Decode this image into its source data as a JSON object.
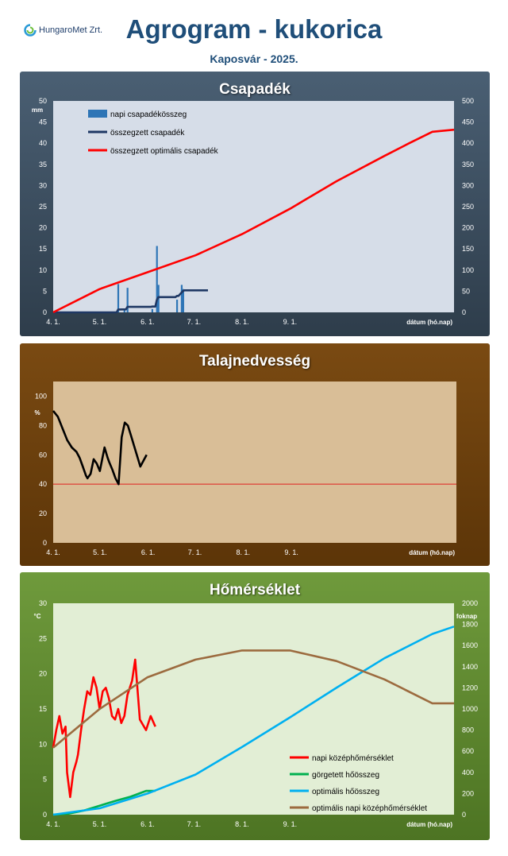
{
  "header": {
    "logo_text": "HungaroMet Zrt.",
    "title": "Agrogram - kukorica",
    "subtitle": "Kaposvár  - 2025."
  },
  "colors": {
    "title": "#1f4e79",
    "panel_precip": "#3b4d5f",
    "panel_soil": "#6b3f0e",
    "panel_temp": "#5e8a2e",
    "plot_precip": "#d6dde8",
    "plot_soil": "#d9be97",
    "plot_temp": "#e2eed5"
  },
  "x_ticks": [
    "4. 1.",
    "5. 1.",
    "6. 1.",
    "7. 1.",
    "8. 1.",
    "9. 1."
  ],
  "x_axis_label": "dátum (hó.nap)",
  "chart_data": [
    {
      "id": "precip",
      "type": "bar+line",
      "title": "Csapadék",
      "left_unit": "mm",
      "xlabel": "dátum (hó.nap)",
      "ylim": [
        0,
        50
      ],
      "y_ticks": [
        0,
        5,
        10,
        15,
        20,
        25,
        30,
        35,
        40,
        45,
        50
      ],
      "ylim_right": [
        0,
        500
      ],
      "y2_ticks": [
        0,
        50,
        100,
        150,
        200,
        250,
        300,
        350,
        400,
        450,
        500
      ],
      "legend": [
        "napi csapadékösszeg",
        "összegzett csapadék",
        "összegzett optimális csapadék"
      ],
      "series": [
        {
          "name": "napi csapadékösszeg",
          "kind": "bar",
          "axis": "left",
          "color": "#2e75b6",
          "x": [
            42,
            46,
            48,
            64,
            67,
            68,
            80,
            83,
            84
          ],
          "values": [
            6.7,
            0.5,
            5.8,
            0.8,
            15.7,
            6.5,
            3.0,
            6.5,
            5.5
          ]
        },
        {
          "name": "összegzett csapadék",
          "kind": "step",
          "axis": "right",
          "color": "#1f3864",
          "x": [
            0,
            41,
            42,
            47,
            48,
            63,
            64,
            66,
            67,
            68,
            69,
            79,
            80,
            81,
            84,
            85,
            100
          ],
          "values": [
            0,
            0,
            6.7,
            7.2,
            13,
            13,
            13.8,
            13.8,
            29.5,
            36,
            36,
            36,
            39,
            39,
            51,
            52,
            52
          ]
        },
        {
          "name": "összegzett optimális csapadék",
          "kind": "line",
          "axis": "right",
          "color": "#ff0000",
          "x": [
            0,
            30,
            61,
            92,
            122,
            153,
            183,
            214,
            230,
            245,
            259
          ],
          "values": [
            0,
            55,
            95,
            135,
            185,
            245,
            310,
            370,
            400,
            427,
            432
          ]
        }
      ]
    },
    {
      "id": "soil",
      "type": "line",
      "title": "Talajnedvesség",
      "left_unit": "%",
      "xlabel": "dátum (hó.nap)",
      "ylim": [
        0,
        110
      ],
      "y_ticks": [
        0,
        20,
        40,
        60,
        80,
        100
      ],
      "reference_line": 40,
      "series": [
        {
          "name": "talajnedvesség",
          "color": "#000000",
          "x": [
            0,
            3,
            6,
            9,
            12,
            15,
            17,
            19,
            21,
            22,
            24,
            26,
            28,
            30,
            33,
            35,
            36,
            38,
            40,
            42,
            44,
            46,
            48,
            50,
            52,
            54,
            56,
            60
          ],
          "values": [
            90,
            86,
            78,
            70,
            65,
            62,
            58,
            52,
            46,
            44,
            47,
            57,
            54,
            49,
            65,
            58,
            55,
            50,
            44,
            40,
            72,
            82,
            80,
            73,
            66,
            59,
            52,
            60
          ]
        }
      ]
    },
    {
      "id": "temp",
      "type": "line",
      "title": "Hőmérséklet",
      "left_unit": "°C",
      "right_unit": "foknap",
      "xlabel": "dátum (hó.nap)",
      "ylim": [
        0,
        30
      ],
      "y_ticks": [
        0,
        5,
        10,
        15,
        20,
        25,
        30
      ],
      "ylim_right": [
        0,
        2000
      ],
      "y2_ticks": [
        0,
        200,
        400,
        600,
        800,
        1000,
        1200,
        1400,
        1600,
        1800,
        2000
      ],
      "legend": [
        "napi középhőmérséklet",
        "görgetett hőösszeg",
        "optimális hőösszeg",
        "optimális napi középhőmérséklet"
      ],
      "series": [
        {
          "name": "napi középhőmérséklet",
          "axis": "left",
          "color": "#ff0000",
          "x": [
            0,
            2,
            4,
            6,
            8,
            9,
            11,
            13,
            15,
            16,
            18,
            20,
            22,
            24,
            26,
            28,
            30,
            32,
            34,
            36,
            38,
            40,
            42,
            44,
            46,
            48,
            51,
            53,
            56,
            60,
            63,
            66
          ],
          "values": [
            9.5,
            12.0,
            14.0,
            11.5,
            12.5,
            6.0,
            2.5,
            6.0,
            7.5,
            8.5,
            12.0,
            15.0,
            17.5,
            17.0,
            19.5,
            18.0,
            15.0,
            17.5,
            18.0,
            16.5,
            14.0,
            13.5,
            15.0,
            13.0,
            14.0,
            17.0,
            19.0,
            22.0,
            13.5,
            12.0,
            14.0,
            12.5
          ]
        },
        {
          "name": "görgetett hőösszeg",
          "axis": "right",
          "color": "#00b050",
          "x": [
            0,
            10,
            20,
            30,
            40,
            50,
            60,
            66
          ],
          "values": [
            0,
            10,
            40,
            85,
            130,
            170,
            225,
            225
          ]
        },
        {
          "name": "optimális hőösszeg",
          "axis": "right",
          "color": "#00b0f0",
          "x": [
            0,
            30,
            61,
            92,
            122,
            153,
            183,
            214,
            245,
            259
          ],
          "values": [
            0,
            60,
            200,
            380,
            640,
            920,
            1200,
            1480,
            1710,
            1780
          ]
        },
        {
          "name": "optimális napi középhőmérséklet",
          "axis": "left",
          "color": "#9c6b3f",
          "x": [
            0,
            30,
            61,
            92,
            122,
            153,
            183,
            214,
            245,
            259
          ],
          "values": [
            9.5,
            15.0,
            19.5,
            22.0,
            23.3,
            23.3,
            21.8,
            19.2,
            15.8,
            15.8
          ]
        }
      ]
    }
  ]
}
